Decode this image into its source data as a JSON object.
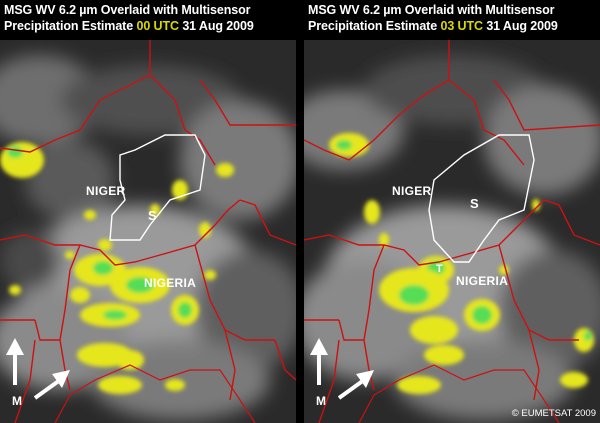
{
  "panels": [
    {
      "title_line1": "MSG WV 6.2 µm Overlaid with Multisensor",
      "title_prefix": "Precipitation Estimate",
      "utc": "00 UTC",
      "date": "31 Aug 2009",
      "labels": {
        "niger": "NIGER",
        "nigeria": "NIGERIA",
        "s": "S",
        "m": "M"
      }
    },
    {
      "title_line1": "MSG WV 6.2 µm Overlaid with Multisensor",
      "title_prefix": "Precipitation Estimate",
      "utc": "03 UTC",
      "date": "31 Aug 2009",
      "labels": {
        "niger": "NIGER",
        "nigeria": "NIGERIA",
        "s": "S",
        "m": "M",
        "t": "T"
      }
    }
  ],
  "copyright": "© EUMETSAT 2009",
  "colors": {
    "precip_yellow": "#e6e61a",
    "precip_green": "#55dd55",
    "utc_text": "#d8d800",
    "border_red": "#cc1111",
    "outline_white": "#ffffff"
  }
}
